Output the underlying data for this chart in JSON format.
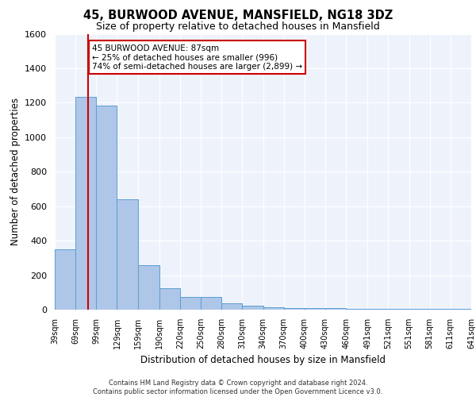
{
  "title1": "45, BURWOOD AVENUE, MANSFIELD, NG18 3DZ",
  "title2": "Size of property relative to detached houses in Mansfield",
  "xlabel": "Distribution of detached houses by size in Mansfield",
  "ylabel": "Number of detached properties",
  "footer": "Contains HM Land Registry data © Crown copyright and database right 2024.\nContains public sector information licensed under the Open Government Licence v3.0.",
  "bin_labels": [
    "39sqm",
    "69sqm",
    "99sqm",
    "129sqm",
    "159sqm",
    "190sqm",
    "220sqm",
    "250sqm",
    "280sqm",
    "310sqm",
    "340sqm",
    "370sqm",
    "400sqm",
    "430sqm",
    "460sqm",
    "491sqm",
    "521sqm",
    "551sqm",
    "581sqm",
    "611sqm",
    "641sqm"
  ],
  "bin_edges": [
    39,
    69,
    99,
    129,
    159,
    190,
    220,
    250,
    280,
    310,
    340,
    370,
    400,
    430,
    460,
    491,
    521,
    551,
    581,
    611,
    641
  ],
  "bar_heights": [
    350,
    1235,
    1185,
    640,
    260,
    125,
    75,
    75,
    35,
    25,
    15,
    10,
    10,
    10,
    5,
    5,
    5,
    5,
    5,
    5
  ],
  "bar_color": "#aec6e8",
  "bar_edge_color": "#5a9fd4",
  "property_size": 87,
  "vline_color": "#cc0000",
  "annotation_line1": "45 BURWOOD AVENUE: 87sqm",
  "annotation_line2": "← 25% of detached houses are smaller (996)",
  "annotation_line3": "74% of semi-detached houses are larger (2,899) →",
  "annotation_box_color": "#ffffff",
  "annotation_box_edge_color": "#cc0000",
  "background_color": "#eef3fb",
  "grid_color": "#ffffff",
  "ylim": [
    0,
    1600
  ],
  "yticks": [
    0,
    200,
    400,
    600,
    800,
    1000,
    1200,
    1400,
    1600
  ]
}
